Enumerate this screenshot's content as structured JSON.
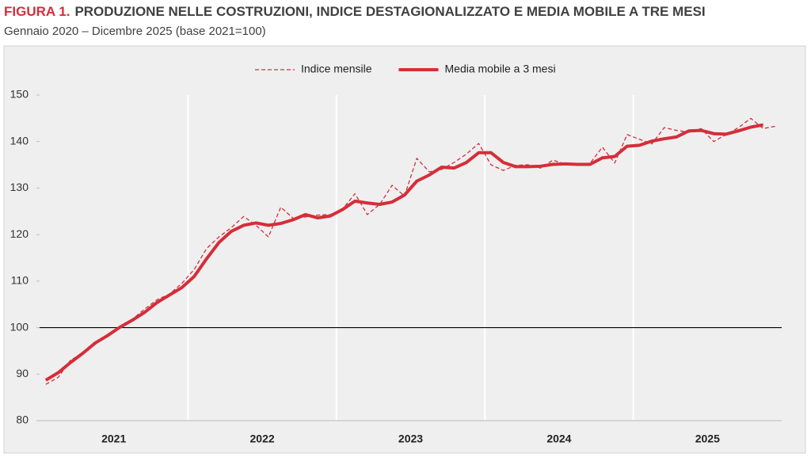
{
  "chart_data": {
    "type": "line",
    "title_prefix": "FIGURA 1.",
    "title": "PRODUZIONE NELLE COSTRUZIONI, INDICE DESTAGIONALIZZATO E MEDIA MOBILE A TRE MESI",
    "subtitle": "Gennaio 2020 – Dicembre 2025 (base 2021=100)",
    "categories": [
      null,
      null,
      null,
      null,
      null,
      null,
      "2021",
      null,
      null,
      null,
      null,
      null,
      null,
      null,
      null,
      null,
      null,
      null,
      "2022",
      null,
      null,
      null,
      null,
      null,
      null,
      null,
      null,
      null,
      null,
      null,
      "2023",
      null,
      null,
      null,
      null,
      null,
      null,
      null,
      null,
      null,
      null,
      null,
      "2024",
      null,
      null,
      null,
      null,
      null,
      null,
      null,
      null,
      null,
      null,
      null,
      "2025",
      null,
      null,
      null,
      null,
      null
    ],
    "series": [
      {
        "name": "Indice mensile",
        "color": "#d42e3a",
        "dashed": true,
        "values": [
          87.8,
          89.3,
          93.0,
          94.5,
          96.5,
          98.6,
          100.0,
          101.8,
          104.0,
          106.0,
          107.2,
          109.5,
          112.5,
          117.0,
          119.5,
          121.5,
          123.9,
          122.0,
          119.5,
          125.9,
          123.5,
          123.8,
          124.2,
          124.3,
          125.5,
          128.8,
          124.3,
          126.5,
          130.6,
          128.3,
          136.4,
          133.5,
          134.0,
          135.5,
          137.3,
          139.6,
          135.0,
          133.8,
          134.9,
          135.0,
          134.3,
          136.0,
          135.2,
          135.0,
          135.3,
          138.8,
          135.4,
          141.5,
          140.5,
          139.5,
          143.0,
          142.4,
          142.0,
          142.8,
          140.0,
          141.5,
          143.0,
          145.0,
          142.8,
          143.3
        ]
      },
      {
        "name": "Media mobile a 3 mesi",
        "color": "#d42e3a",
        "dashed": false,
        "values": [
          88.7,
          90.3,
          92.5,
          94.5,
          96.7,
          98.3,
          100.1,
          101.6,
          103.3,
          105.4,
          107.0,
          108.6,
          111.0,
          114.8,
          118.3,
          120.7,
          122.0,
          122.5,
          122.0,
          122.4,
          123.2,
          124.3,
          123.6,
          124.0,
          125.4,
          127.2,
          126.8,
          126.5,
          127.0,
          128.5,
          131.5,
          132.8,
          134.5,
          134.3,
          135.5,
          137.6,
          137.6,
          135.5,
          134.6,
          134.6,
          134.7,
          135.1,
          135.2,
          135.1,
          135.1,
          136.5,
          136.8,
          139.0,
          139.2,
          140.1,
          140.6,
          141.0,
          142.3,
          142.4,
          141.7,
          141.6,
          142.3,
          143.1,
          143.6,
          null
        ]
      }
    ],
    "ylim": [
      80,
      150
    ],
    "yticks": [
      80,
      90,
      100,
      110,
      120,
      130,
      140,
      150
    ],
    "reference_line": 100,
    "legend": "top"
  }
}
